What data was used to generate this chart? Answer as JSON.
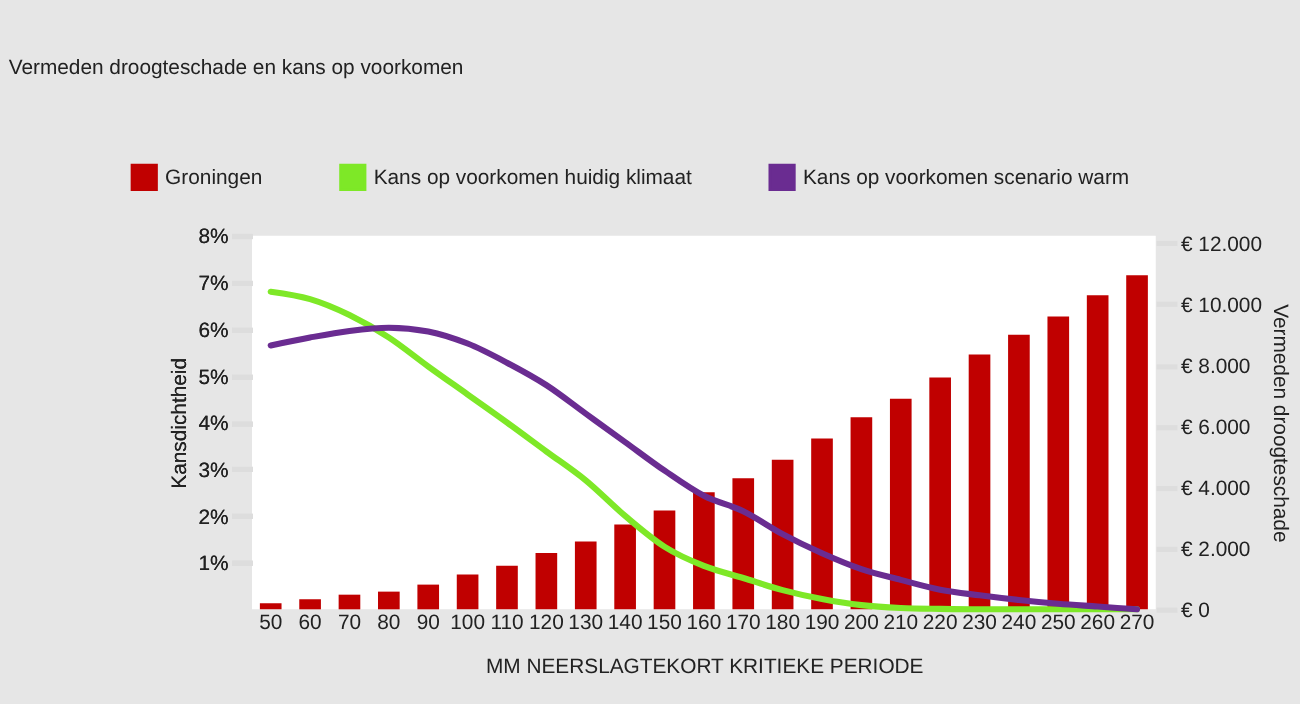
{
  "chart_data": {
    "type": "bar",
    "title": "Vermeden droogteschade en kans op voorkomen",
    "xlabel": "MM NEERSLAGTEKORT KRITIEKE PERIODE",
    "ylabel": "Kansdichtheid",
    "y2label": "Vermeden droogteschade",
    "categories": [
      "50",
      "60",
      "70",
      "80",
      "90",
      "100",
      "110",
      "120",
      "130",
      "140",
      "150",
      "160",
      "170",
      "180",
      "190",
      "200",
      "210",
      "220",
      "230",
      "240",
      "250",
      "260",
      "270"
    ],
    "series": [
      {
        "name": "Groningen",
        "axis": "y2",
        "color": "#c00000",
        "values": [
          200,
          330,
          480,
          580,
          810,
          1140,
          1430,
          1850,
          2220,
          2780,
          3240,
          3840,
          4300,
          4900,
          5600,
          6300,
          6900,
          7600,
          8350,
          9000,
          9600,
          10300,
          10950
        ]
      },
      {
        "name": "Kans op voorkomen huidig klimaat",
        "type": "line",
        "color": "#7ee827",
        "values": [
          6.8,
          6.64,
          6.3,
          5.82,
          5.2,
          4.6,
          4.0,
          3.38,
          2.76,
          2.0,
          1.34,
          0.93,
          0.67,
          0.41,
          0.22,
          0.09,
          0.03,
          0.01,
          0.0,
          0.0,
          0.0,
          0.0,
          0.0
        ]
      },
      {
        "name": "Kans op voorkomen scenario warm",
        "type": "line",
        "color": "#6a2c91",
        "values": [
          5.65,
          5.82,
          5.96,
          6.03,
          5.95,
          5.69,
          5.28,
          4.8,
          4.19,
          3.58,
          2.97,
          2.43,
          2.1,
          1.61,
          1.2,
          0.86,
          0.63,
          0.42,
          0.3,
          0.2,
          0.12,
          0.06,
          0.0
        ]
      }
    ],
    "ylim": [
      0,
      8
    ],
    "yticks": [
      {
        "value": 1,
        "label": "1%"
      },
      {
        "value": 2,
        "label": "2%"
      },
      {
        "value": 3,
        "label": "3%"
      },
      {
        "value": 4,
        "label": "4%"
      },
      {
        "value": 5,
        "label": "5%"
      },
      {
        "value": 6,
        "label": "6%"
      },
      {
        "value": 7,
        "label": "7%"
      },
      {
        "value": 8,
        "label": "8%"
      }
    ],
    "y2lim": [
      0,
      12250
    ],
    "y2ticks": [
      {
        "value": 0,
        "label": "€ 0"
      },
      {
        "value": 2000,
        "label": "€ 2.000"
      },
      {
        "value": 4000,
        "label": "€ 4.000"
      },
      {
        "value": 6000,
        "label": "€ 6.000"
      },
      {
        "value": 8000,
        "label": "€ 8.000"
      },
      {
        "value": 10000,
        "label": "€ 10.000"
      },
      {
        "value": 12000,
        "label": "€ 12.000"
      }
    ],
    "legend": "top left",
    "grid": false,
    "marker": "none",
    "line_style": "solid"
  }
}
